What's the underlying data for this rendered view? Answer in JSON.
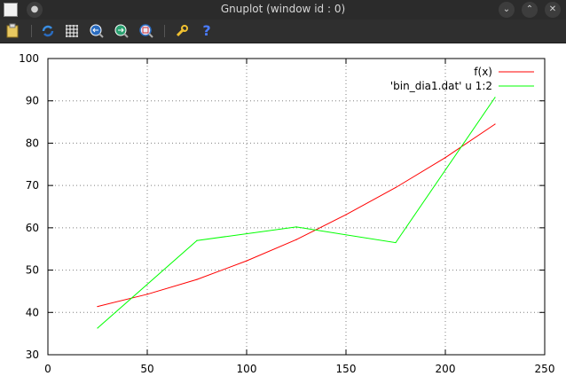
{
  "window": {
    "title": "Gnuplot (window id : 0)"
  },
  "toolbar": {
    "buttons": [
      {
        "name": "copy-to-clipboard-button",
        "icon": "clipboard-icon"
      },
      {
        "name": "replot-button",
        "icon": "refresh-icon"
      },
      {
        "name": "toggle-grid-button",
        "icon": "grid-icon"
      },
      {
        "name": "previous-zoom-button",
        "icon": "zoom-back-icon"
      },
      {
        "name": "next-zoom-button",
        "icon": "zoom-forward-icon"
      },
      {
        "name": "autoscale-button",
        "icon": "autoscale-icon"
      },
      {
        "name": "settings-button",
        "icon": "wrench-icon"
      },
      {
        "name": "help-button",
        "icon": "help-icon",
        "label": "?"
      }
    ]
  },
  "chart_data": {
    "type": "line",
    "xlim": [
      0,
      250
    ],
    "ylim": [
      30,
      100
    ],
    "xticks": [
      "0",
      "50",
      "100",
      "150",
      "200",
      "250"
    ],
    "yticks": [
      "30",
      "40",
      "50",
      "60",
      "70",
      "80",
      "90",
      "100"
    ],
    "grid": true,
    "legend_position": "top-right",
    "series": [
      {
        "name": "f(x)",
        "color": "#ff0000",
        "x": [
          25,
          50,
          75,
          100,
          125,
          150,
          175,
          200,
          225
        ],
        "y": [
          41.4,
          44.3,
          47.8,
          52.2,
          57.2,
          63.1,
          69.5,
          76.6,
          84.5
        ]
      },
      {
        "name": "'bin_dia1.dat' u 1:2",
        "color": "#00ff00",
        "x": [
          25,
          75,
          125,
          175,
          225
        ],
        "y": [
          36.3,
          57.0,
          60.2,
          56.5,
          90.8
        ]
      }
    ]
  }
}
